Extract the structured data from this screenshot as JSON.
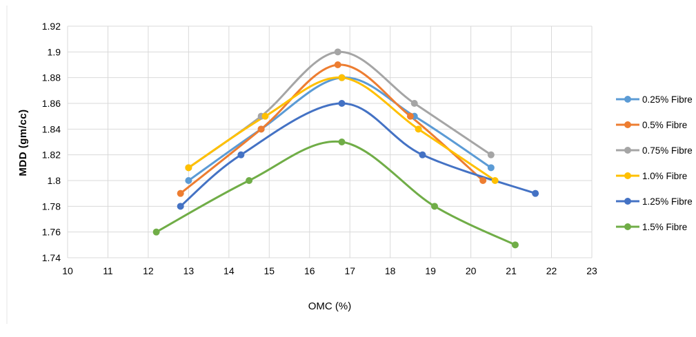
{
  "chart_data": {
    "type": "line",
    "title": "",
    "xlabel": "OMC (%)",
    "ylabel": "MDD (gm/cc)",
    "xlim": [
      10,
      23
    ],
    "ylim": [
      1.74,
      1.92
    ],
    "x_ticks": [
      "10",
      "11",
      "12",
      "13",
      "14",
      "15",
      "16",
      "17",
      "18",
      "19",
      "20",
      "21",
      "22",
      "23"
    ],
    "y_ticks": [
      "1.74",
      "1.76",
      "1.78",
      "1.8",
      "1.82",
      "1.84",
      "1.86",
      "1.88",
      "1.9",
      "1.92"
    ],
    "grid": true,
    "legend_position": "right",
    "smooth": true,
    "series": [
      {
        "name": "0.25% Fibre",
        "color": "#5B9BD5",
        "points": [
          [
            13.0,
            1.8
          ],
          [
            14.8,
            1.84
          ],
          [
            16.8,
            1.88
          ],
          [
            18.6,
            1.85
          ],
          [
            20.5,
            1.81
          ]
        ]
      },
      {
        "name": "0.5% Fibre",
        "color": "#ED7D31",
        "points": [
          [
            12.8,
            1.79
          ],
          [
            14.8,
            1.84
          ],
          [
            16.7,
            1.89
          ],
          [
            18.5,
            1.85
          ],
          [
            20.3,
            1.8
          ]
        ]
      },
      {
        "name": "0.75% Fibre",
        "color": "#A5A5A5",
        "points": [
          [
            13.0,
            1.81
          ],
          [
            14.8,
            1.85
          ],
          [
            16.7,
            1.9
          ],
          [
            18.6,
            1.86
          ],
          [
            20.5,
            1.82
          ]
        ]
      },
      {
        "name": "1.0% Fibre",
        "color": "#FFC000",
        "points": [
          [
            13.0,
            1.81
          ],
          [
            14.9,
            1.85
          ],
          [
            16.8,
            1.88
          ],
          [
            18.7,
            1.84
          ],
          [
            20.6,
            1.8
          ]
        ]
      },
      {
        "name": "1.25% Fibre",
        "color": "#4472C4",
        "points": [
          [
            12.8,
            1.78
          ],
          [
            14.3,
            1.82
          ],
          [
            16.8,
            1.86
          ],
          [
            18.8,
            1.82
          ],
          [
            21.6,
            1.79
          ]
        ]
      },
      {
        "name": "1.5% Fibre",
        "color": "#70AD47",
        "points": [
          [
            12.2,
            1.76
          ],
          [
            14.5,
            1.8
          ],
          [
            16.8,
            1.83
          ],
          [
            19.1,
            1.78
          ],
          [
            21.1,
            1.75
          ]
        ]
      }
    ]
  }
}
